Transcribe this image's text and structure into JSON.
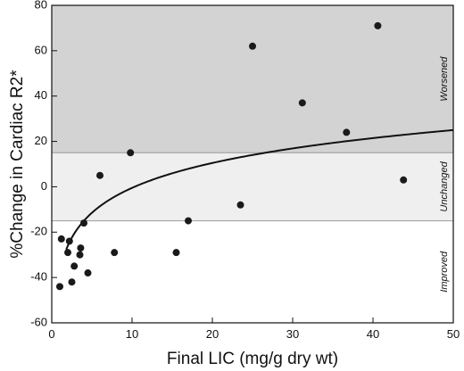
{
  "chart_data": {
    "type": "scatter",
    "title": "",
    "xlabel": "Final LIC (mg/g dry wt)",
    "ylabel": "%Change in Cardiac R2*",
    "xlim": [
      0,
      50
    ],
    "ylim": [
      -60,
      80
    ],
    "x_ticks": [
      0,
      10,
      20,
      30,
      40,
      50
    ],
    "y_ticks": [
      -60,
      -40,
      -20,
      0,
      20,
      40,
      60,
      80
    ],
    "grid": false,
    "legend": "none",
    "bands": [
      {
        "label": "Worsened",
        "y_range": [
          15,
          80
        ],
        "color": "#d3d3d3"
      },
      {
        "label": "Unchanged",
        "y_range": [
          -15,
          15
        ],
        "color": "#efefef"
      },
      {
        "label": "Improved",
        "y_range": [
          -60,
          -15
        ],
        "color": "#ffffff"
      }
    ],
    "band_line_color": "#a6a6a6",
    "series": [
      {
        "marker_color": "#1a1a1a",
        "points": [
          {
            "x": 1.0,
            "y": -44
          },
          {
            "x": 1.2,
            "y": -23
          },
          {
            "x": 2.0,
            "y": -29
          },
          {
            "x": 2.2,
            "y": -24
          },
          {
            "x": 2.5,
            "y": -42
          },
          {
            "x": 2.8,
            "y": -35
          },
          {
            "x": 3.5,
            "y": -30
          },
          {
            "x": 3.6,
            "y": -27
          },
          {
            "x": 4.0,
            "y": -16
          },
          {
            "x": 4.5,
            "y": -38
          },
          {
            "x": 6.0,
            "y": 5
          },
          {
            "x": 7.8,
            "y": -29
          },
          {
            "x": 9.8,
            "y": 15
          },
          {
            "x": 15.5,
            "y": -29
          },
          {
            "x": 17.0,
            "y": -15
          },
          {
            "x": 23.5,
            "y": -8
          },
          {
            "x": 25.0,
            "y": 62
          },
          {
            "x": 31.2,
            "y": 37
          },
          {
            "x": 36.7,
            "y": 24
          },
          {
            "x": 40.6,
            "y": 71
          },
          {
            "x": 43.8,
            "y": 3
          }
        ]
      }
    ],
    "fit_curve": {
      "form": "log",
      "color": "#111111",
      "x_range": [
        1.8,
        50
      ],
      "anchors": [
        {
          "x": 4.0,
          "y": -15
        },
        {
          "x": 50.0,
          "y": 25
        }
      ]
    }
  }
}
